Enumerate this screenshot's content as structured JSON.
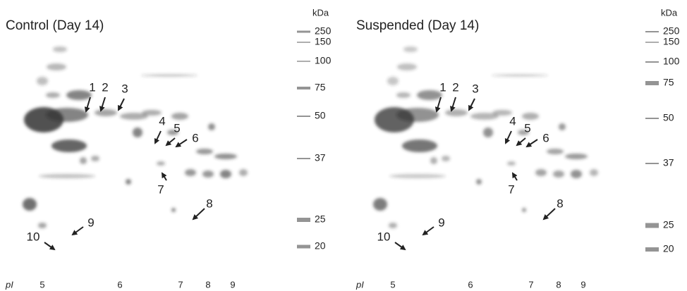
{
  "panels": [
    {
      "title": "Control (Day 14)",
      "unit": "kDa",
      "markers": [
        "250",
        "150",
        "100",
        "75",
        "50",
        "37",
        "25",
        "20"
      ],
      "spots": [
        "1",
        "2",
        "3",
        "4",
        "5",
        "6",
        "7",
        "8",
        "9",
        "10"
      ],
      "pi_label": "pI",
      "pi_ticks": [
        "5",
        "6",
        "7",
        "8",
        "9"
      ]
    },
    {
      "title": "Suspended (Day 14)",
      "unit": "kDa",
      "markers": [
        "250",
        "150",
        "100",
        "75",
        "50",
        "37",
        "25",
        "20"
      ],
      "spots": [
        "1",
        "2",
        "3",
        "4",
        "5",
        "6",
        "7",
        "8",
        "9",
        "10"
      ],
      "pi_label": "pI",
      "pi_ticks": [
        "5",
        "6",
        "7",
        "8",
        "9"
      ]
    }
  ]
}
